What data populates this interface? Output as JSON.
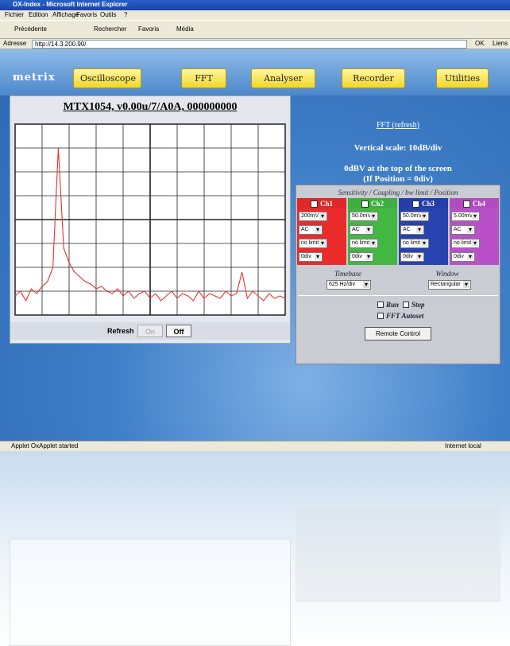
{
  "window": {
    "title": "OX-Index - Microsoft Internet Explorer",
    "menu": [
      "Fichier",
      "Edition",
      "Affichage",
      "Favoris",
      "Outils",
      "?"
    ],
    "toolbar": [
      "Précédente",
      "Rechercher",
      "Favoris",
      "Média"
    ],
    "address_label": "Adresse",
    "url": "http://14.3.200.90/",
    "go": "OK",
    "links": "Liens"
  },
  "nav": {
    "logo": "metrix",
    "items": [
      "Oscilloscope",
      "FFT",
      "Analyser",
      "Recorder",
      "Utilities"
    ]
  },
  "scope": {
    "heading": "MTX1054, v0.00u/7/A0A, 000000000",
    "trace": [
      7.2,
      7.0,
      7.4,
      6.9,
      7.1,
      6.8,
      6.6,
      6.0,
      1.0,
      5.2,
      5.8,
      6.2,
      6.4,
      6.6,
      6.7,
      6.9,
      6.8,
      7.0,
      7.1,
      6.9,
      7.2,
      7.0,
      7.3,
      7.1,
      7.0,
      7.3,
      7.1,
      7.4,
      7.2,
      7.0,
      7.3,
      7.1,
      7.2,
      7.4,
      7.0,
      7.3,
      7.1,
      7.2,
      7.3,
      7.0,
      7.2,
      7.1,
      6.2,
      7.3,
      7.0,
      7.2,
      7.4,
      7.1,
      7.3,
      7.2,
      7.3
    ],
    "refresh_label": "Refresh",
    "on": "On",
    "off": "Off"
  },
  "fft": {
    "link": "FFT (refresh)",
    "scale": "Vertical scale: 10dB/div",
    "ref_line1": "0dBV at the top of the screen",
    "ref_line2": "(If Position = 0div)"
  },
  "controls": {
    "caption": "Sensitivity / Coupling / bw limit / Position",
    "channels": [
      {
        "name": "Ch1",
        "color": "#e02828",
        "sensitivity": "200mV",
        "coupling": "AC",
        "bw_limit": "no limit",
        "position": "0div"
      },
      {
        "name": "Ch2",
        "color": "#3fae3f",
        "sensitivity": "50.0mV",
        "coupling": "AC",
        "bw_limit": "no limit",
        "position": "0div"
      },
      {
        "name": "Ch3",
        "color": "#2440a8",
        "sensitivity": "50.0mV",
        "coupling": "AC",
        "bw_limit": "no limit",
        "position": "0div"
      },
      {
        "name": "Ch4",
        "color": "#b04cc0",
        "sensitivity": "5.00mV",
        "coupling": "AC",
        "bw_limit": "no limit",
        "position": "0div"
      }
    ],
    "timebase_label": "Timebase",
    "timebase": "625 Hz/div",
    "window_label": "Window",
    "window": "Rectangular",
    "run": "Run",
    "stop": "Stop",
    "autoset": "FFT Autoset",
    "remote": "Remote Control"
  },
  "status": {
    "left": "Applet OxApplet started",
    "right": "Internet local"
  }
}
